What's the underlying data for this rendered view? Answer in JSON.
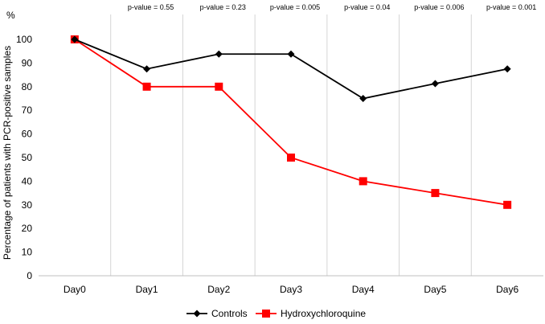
{
  "chart_data": {
    "type": "line",
    "categories": [
      "Day0",
      "Day1",
      "Day2",
      "Day3",
      "Day4",
      "Day5",
      "Day6"
    ],
    "series": [
      {
        "name": "Controls",
        "values": [
          100,
          87.5,
          93.8,
          93.8,
          75,
          81.3,
          87.5
        ],
        "color": "#000000",
        "marker": "diamond"
      },
      {
        "name": "Hydroxychloroquine",
        "values": [
          100,
          80,
          80,
          50,
          40,
          35,
          30
        ],
        "color": "#ff0000",
        "marker": "square"
      }
    ],
    "annotations": [
      "",
      "p-value = 0.55",
      "p-value = 0.23",
      "p-value = 0.005",
      "p-value = 0.04",
      "p-value = 0.006",
      "p-value = 0.001"
    ],
    "xlabel": "",
    "ylabel": "Percentage of patients with PCR-positive samples",
    "yunit": "%",
    "ylim": [
      0,
      100
    ],
    "yticks": [
      0,
      10,
      20,
      30,
      40,
      50,
      60,
      70,
      80,
      90,
      100
    ],
    "grid": "vertical category separators",
    "legend": "bottom"
  }
}
